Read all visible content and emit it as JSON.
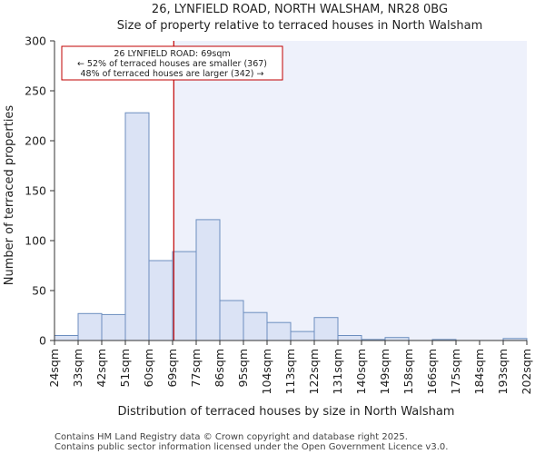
{
  "chart_data": {
    "type": "bar",
    "title": "26, LYNFIELD ROAD, NORTH WALSHAM, NR28 0BG",
    "subtitle": "Size of property relative to terraced houses in North Walsham",
    "xlabel": "Distribution of terraced houses by size in North Walsham",
    "ylabel": "Number of terraced properties",
    "ylim": [
      0,
      300
    ],
    "yticks": [
      0,
      50,
      100,
      150,
      200,
      250,
      300
    ],
    "bin_edges": [
      "24sqm",
      "33sqm",
      "42sqm",
      "51sqm",
      "60sqm",
      "69sqm",
      "77sqm",
      "86sqm",
      "95sqm",
      "104sqm",
      "113sqm",
      "122sqm",
      "131sqm",
      "140sqm",
      "149sqm",
      "158sqm",
      "166sqm",
      "175sqm",
      "184sqm",
      "193sqm",
      "202sqm"
    ],
    "values": [
      5,
      27,
      26,
      228,
      80,
      89,
      121,
      40,
      28,
      18,
      9,
      23,
      5,
      1,
      3,
      0,
      1,
      0,
      0,
      2
    ],
    "marker": {
      "value_sqm": 69,
      "bin_position": 5.05,
      "label_line1": "26 LYNFIELD ROAD: 69sqm",
      "label_line2": "← 52% of terraced houses are smaller (367)",
      "label_line3": "48% of terraced houses are larger (342) →"
    },
    "colors": {
      "bar_fill": "#dbe3f5",
      "bar_stroke": "#6c8ebf",
      "marker": "#c00000",
      "highlight_region": "#eef1fb",
      "axis": "#333333"
    }
  },
  "footer": {
    "line1": "Contains HM Land Registry data © Crown copyright and database right 2025.",
    "line2": "Contains public sector information licensed under the Open Government Licence v3.0."
  }
}
